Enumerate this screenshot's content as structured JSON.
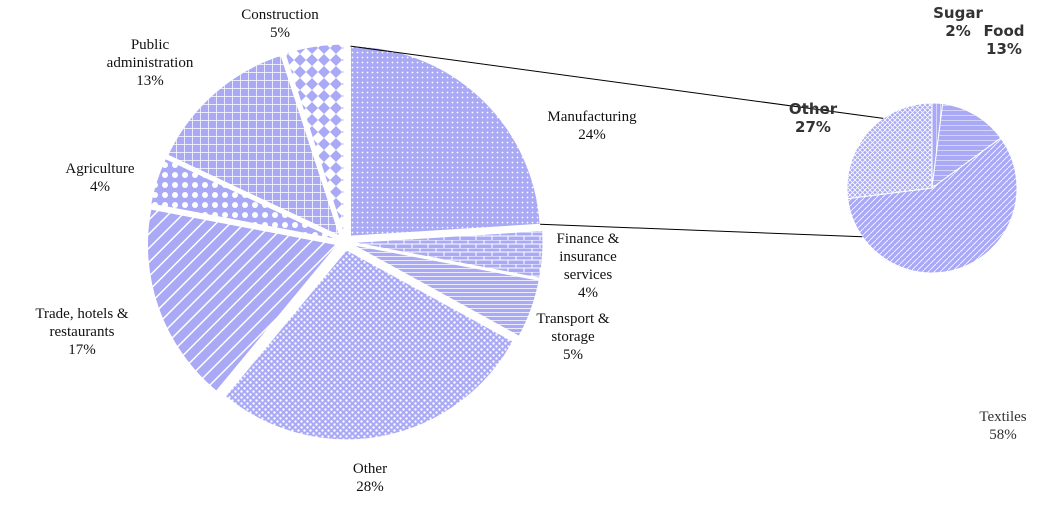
{
  "chart_data": [
    {
      "type": "pie",
      "color": "#a9a9f5",
      "categories": [
        "Manufacturing",
        "Finance & insurance services",
        "Transport & storage",
        "Other",
        "Trade, hotels & restaurants",
        "Agriculture",
        "Public administration",
        "Construction"
      ],
      "values": [
        24,
        4,
        5,
        28,
        17,
        4,
        13,
        5
      ],
      "value_labels": [
        "24%",
        "4%",
        "5%",
        "28%",
        "17%",
        "4%",
        "13%",
        "5%"
      ]
    },
    {
      "type": "pie",
      "color": "#a9a9f5",
      "categories": [
        "Sugar",
        "Food",
        "Textiles",
        "Other"
      ],
      "values": [
        2,
        13,
        58,
        27
      ],
      "value_labels": [
        "2%",
        "13%",
        "58%",
        "27%"
      ]
    }
  ]
}
